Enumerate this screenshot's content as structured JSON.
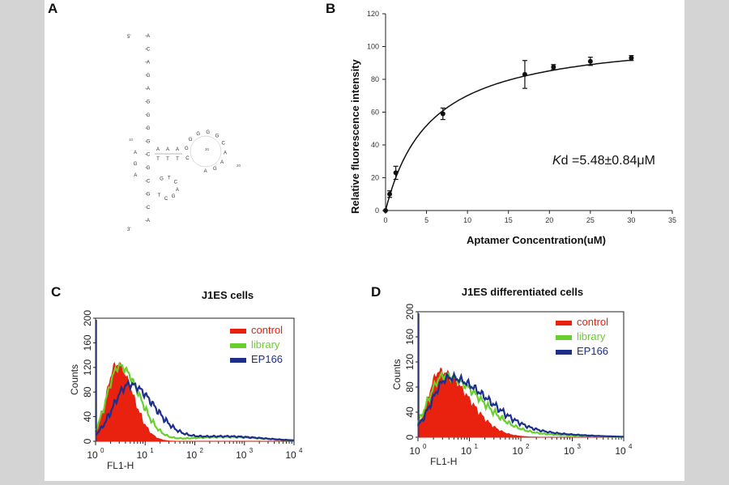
{
  "panels": {
    "a": {
      "label": "A"
    },
    "b": {
      "label": "B"
    },
    "c": {
      "label": "C",
      "title": "J1ES cells"
    },
    "d": {
      "label": "D",
      "title": "J1ES differentiated cells"
    }
  },
  "structure": {
    "five_prime": "5'",
    "three_prime": "3'",
    "stem_left": [
      "A",
      "C",
      "A",
      "G",
      "A",
      "G",
      "G",
      "G",
      "G",
      "C",
      "G",
      "C",
      "G",
      "C",
      "A"
    ],
    "stem_right": [
      "A",
      "G",
      "A",
      "G",
      "G",
      "G",
      "G",
      "G",
      "G",
      "T",
      "G",
      "T",
      "G",
      "C"
    ],
    "loop_big": [
      "C",
      "G",
      "G",
      "G",
      "G",
      "G",
      "C",
      "A",
      "A",
      "G",
      "A"
    ],
    "loop_small": [
      "G",
      "T",
      "C",
      "A",
      "G",
      "C",
      "T"
    ],
    "inner_pairs": [
      "A",
      "A",
      "A",
      "T",
      "T",
      "T"
    ],
    "numbers": [
      "10",
      "20",
      "30"
    ]
  },
  "chart_data": [
    {
      "type": "scatter",
      "panel": "B",
      "title": "",
      "xlabel": "Aptamer Concentration(uM)",
      "ylabel": "Relative fluorescence intensity",
      "xlim": [
        0,
        35
      ],
      "ylim": [
        0,
        120
      ],
      "xticks": [
        0,
        5,
        10,
        15,
        20,
        25,
        30,
        35
      ],
      "yticks": [
        0,
        20,
        40,
        60,
        80,
        100,
        120
      ],
      "x": [
        0,
        0.5,
        1.25,
        7,
        17,
        20.5,
        25,
        30
      ],
      "y": [
        0,
        10,
        23,
        59,
        83,
        87.5,
        91,
        93
      ],
      "err": [
        0,
        2,
        4,
        3.5,
        8.5,
        1.5,
        2.5,
        1.5
      ],
      "fit": {
        "model": "one-site binding",
        "kd": 5.48,
        "bmax": 108.5
      },
      "annotation": {
        "italic": "K",
        "rest": "d =5.48±0.84μM"
      }
    },
    {
      "type": "area",
      "panel": "C",
      "title": "J1ES cells",
      "xlabel": "FL1-H",
      "ylabel": "Counts",
      "xscale": "log",
      "xlim": [
        1,
        10000
      ],
      "ylim": [
        0,
        200
      ],
      "xticks": [
        {
          "base": "10",
          "exp": "0"
        },
        {
          "base": "10",
          "exp": "1"
        },
        {
          "base": "10",
          "exp": "2"
        },
        {
          "base": "10",
          "exp": "3"
        },
        {
          "base": "10",
          "exp": "4"
        }
      ],
      "yticks": [
        0,
        40,
        80,
        120,
        160,
        200
      ],
      "series": [
        {
          "name": "control",
          "color": "#e8220f",
          "fill": true,
          "peak_log": 0.42,
          "peak": 125,
          "sigma_left": 0.2,
          "sigma_right": 0.33,
          "tail": 0
        },
        {
          "name": "library",
          "color": "#6acf2e",
          "fill": false,
          "peak_log": 0.48,
          "peak": 122,
          "sigma_left": 0.25,
          "sigma_right": 0.4,
          "tail": 7
        },
        {
          "name": "EP166",
          "color": "#1c2f8c",
          "fill": false,
          "peak_log": 0.68,
          "peak": 92,
          "sigma_left": 0.33,
          "sigma_right": 0.5,
          "tail": 8
        }
      ]
    },
    {
      "type": "area",
      "panel": "D",
      "title": "J1ES differentiated cells",
      "xlabel": "FL1-H",
      "ylabel": "Counts",
      "xscale": "log",
      "xlim": [
        1,
        10000
      ],
      "ylim": [
        0,
        200
      ],
      "xticks": [
        {
          "base": "10",
          "exp": "0"
        },
        {
          "base": "10",
          "exp": "1"
        },
        {
          "base": "10",
          "exp": "2"
        },
        {
          "base": "10",
          "exp": "3"
        },
        {
          "base": "10",
          "exp": "4"
        }
      ],
      "yticks": [
        0,
        40,
        80,
        120,
        160,
        200
      ],
      "series": [
        {
          "name": "control",
          "color": "#e8220f",
          "fill": true,
          "peak_log": 0.42,
          "peak": 105,
          "sigma_left": 0.22,
          "sigma_right": 0.55,
          "tail": 0
        },
        {
          "name": "library",
          "color": "#6acf2e",
          "fill": false,
          "peak_log": 0.5,
          "peak": 98,
          "sigma_left": 0.3,
          "sigma_right": 0.72,
          "tail": 3
        },
        {
          "name": "EP166",
          "color": "#1c2f8c",
          "fill": false,
          "peak_log": 0.6,
          "peak": 95,
          "sigma_left": 0.33,
          "sigma_right": 0.78,
          "tail": 4
        }
      ]
    }
  ]
}
